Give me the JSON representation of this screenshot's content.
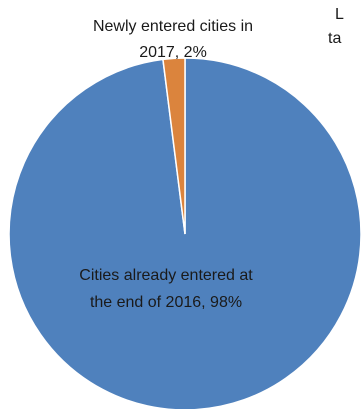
{
  "chart_data": {
    "type": "pie",
    "slices": [
      {
        "name": "Cities already entered at the end of 2016",
        "value": 98,
        "label_line1": "Cities already entered at",
        "label_line2": "the end of 2016, 98%",
        "color": "#4f81bd"
      },
      {
        "name": "Newly entered cities in 2017",
        "value": 2,
        "label_line1": "Newly entered cities in",
        "label_line2": "2017, 2%",
        "color": "#db843d"
      }
    ],
    "clipped_text": {
      "line1": "L",
      "line2": "ta"
    }
  }
}
